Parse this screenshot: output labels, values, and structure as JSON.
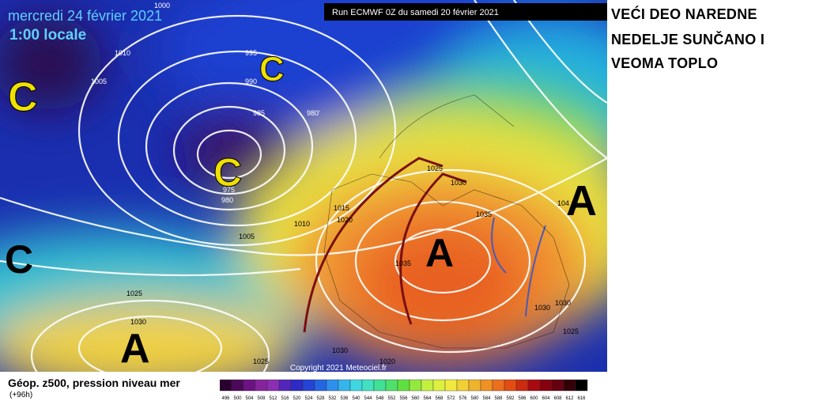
{
  "map": {
    "date": "mercredi 24 février 2021",
    "time": "1:00 locale",
    "run": "Run ECMWF 0Z du samedi 20 février 2021",
    "copyright": "Copyright 2021 Meteociel.fr",
    "pressure_labels": [
      "1000",
      "1010",
      "995",
      "1005",
      "990",
      "985",
      "980'",
      "975",
      "980",
      "1005",
      "1010",
      "1015",
      "1020",
      "1025",
      "1030",
      "1035",
      "1035",
      "1030",
      "1030",
      "1030",
      "1025",
      "1025",
      "1030",
      "1025",
      "1020",
      "104"
    ],
    "centers": [
      "C",
      "C",
      "C",
      "C",
      "A",
      "A",
      "A"
    ]
  },
  "caption": [
    "VEĆI DEO NAREDNE",
    "NEDELJE SUNČANO I",
    "VEOMA TOPLO"
  ],
  "legend": {
    "title": "Géop. z500, pression niveau mer",
    "subtitle": "(+96h)",
    "scale": [
      "496",
      "500",
      "504",
      "508",
      "512",
      "516",
      "520",
      "524",
      "528",
      "532",
      "536",
      "540",
      "544",
      "548",
      "552",
      "556",
      "560",
      "564",
      "568",
      "572",
      "576",
      "580",
      "584",
      "588",
      "592",
      "596",
      "600",
      "604",
      "608",
      "612",
      "616"
    ]
  }
}
